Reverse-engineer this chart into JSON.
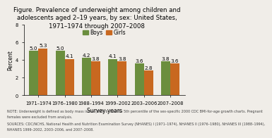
{
  "title": "Figure. Prevalence of underweight among children and\nadolescents aged 2–19 years, by sex: United States,\n1971–1974 through 2007–2008",
  "xlabel": "Survey years",
  "ylabel": "Percent",
  "categories": [
    "1971–1974",
    "1976–1980",
    "1988–1994",
    "1999–2002",
    "2003–2006",
    "2007–2008"
  ],
  "boys": [
    5.0,
    5.0,
    4.2,
    4.1,
    3.6,
    3.8
  ],
  "girls": [
    5.3,
    4.1,
    3.8,
    3.8,
    2.8,
    3.6
  ],
  "boys_color": "#6b8e3e",
  "girls_color": "#c86820",
  "ylim": [
    0,
    8
  ],
  "yticks": [
    0,
    2,
    4,
    6,
    8
  ],
  "bar_width": 0.35,
  "legend_labels": [
    "Boys",
    "Girls"
  ],
  "note_line1": "NOTE: Underweight is defined as body mass index (BMI) below the 5th percentile of the sex-specific 2000 CDC BMI-for-age growth charts. Pregnant",
  "note_line2": "females were excluded from analysis.",
  "note_line3": "SOURCES: CDC/NCHS, National Health and Nutrition Examination Survey (NHANES) I (1971–1974), NHANES II (1976–1980), NHANES III (1988–1994),",
  "note_line4": "NHANES 1999–2002, 2003–2006, and 2007–2008.",
  "title_fontsize": 6.2,
  "axis_fontsize": 5.5,
  "tick_fontsize": 4.8,
  "note_fontsize": 3.5,
  "label_fontsize": 5.2,
  "legend_fontsize": 5.5,
  "bg_color": "#f0ede8"
}
